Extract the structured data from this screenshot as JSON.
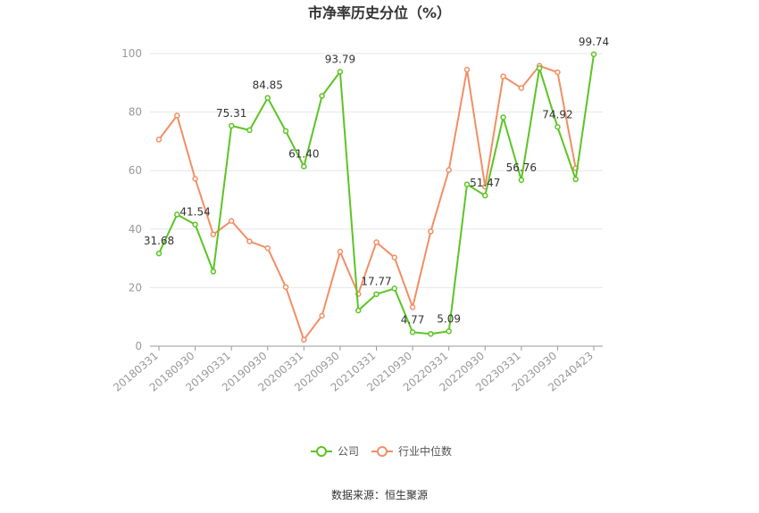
{
  "chart_data": {
    "type": "line",
    "title": "市净率历史分位（%）",
    "x": [
      "20180331",
      "20180630",
      "20180930",
      "20181231",
      "20190331",
      "20190630",
      "20190930",
      "20191231",
      "20200331",
      "20200630",
      "20200930",
      "20201231",
      "20210331",
      "20210630",
      "20210930",
      "20211231",
      "20220331",
      "20220630",
      "20220930",
      "20221231",
      "20230331",
      "20230630",
      "20230930",
      "20231231",
      "20240423"
    ],
    "x_tick_labels": [
      "20180331",
      "20180930",
      "20190331",
      "20190930",
      "20200331",
      "20200930",
      "20210331",
      "20210930",
      "20220331",
      "20220930",
      "20230331",
      "20230930",
      "20240423"
    ],
    "ylim": [
      0,
      100
    ],
    "y_ticks": [
      "0",
      "20",
      "40",
      "60",
      "80",
      "100"
    ],
    "grid": true,
    "legend_position": "bottom",
    "series": [
      {
        "name": "公司",
        "color": "#5cc424",
        "values": [
          31.68,
          45.0,
          41.54,
          25.5,
          75.31,
          73.8,
          84.85,
          73.5,
          61.4,
          85.5,
          93.79,
          12.2,
          17.77,
          19.7,
          4.77,
          4.2,
          5.09,
          55.3,
          51.47,
          78.2,
          56.76,
          95.0,
          74.92,
          57.0,
          99.74
        ],
        "labels": [
          "31.68",
          "",
          "41.54",
          "",
          "75.31",
          "",
          "84.85",
          "",
          "61.40",
          "",
          "93.79",
          "",
          "17.77",
          "",
          "4.77",
          "",
          "5.09",
          "",
          "51.47",
          "",
          "56.76",
          "",
          "74.92",
          "",
          "99.74"
        ]
      },
      {
        "name": "行业中位数",
        "color": "#f28e65",
        "values": [
          70.6,
          78.8,
          57.2,
          38.2,
          42.8,
          35.8,
          33.5,
          20.2,
          2.2,
          10.4,
          32.3,
          17.8,
          35.5,
          30.3,
          13.3,
          39.2,
          60.2,
          94.5,
          54.5,
          92.2,
          88.2,
          95.8,
          93.6,
          60.8,
          null
        ]
      }
    ]
  },
  "source_text": "数据来源：恒生聚源"
}
